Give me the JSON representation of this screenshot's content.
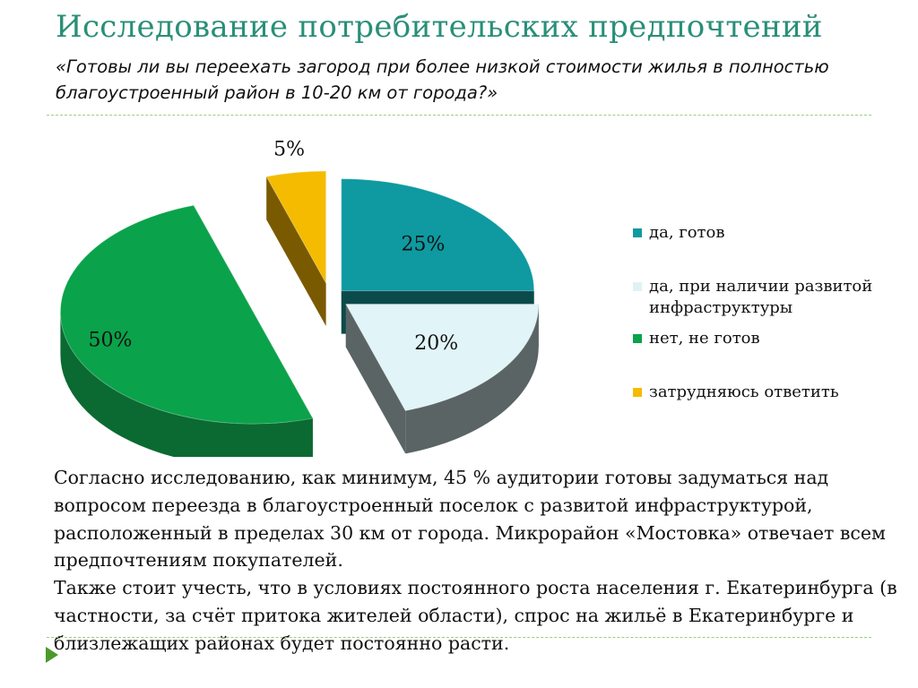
{
  "slide": {
    "title": "Исследование потребительских предпочтений",
    "subtitle": "«Готовы ли вы переехать загород при более низкой стоимости жилья в полностью благоустроенный район в 10-20 км от города?»",
    "body": [
      "Согласно исследованию,  как минимум, 45 % аудитории готовы задуматься над вопросом переезда в благоустроенный поселок с развитой инфраструктурой, расположенный в пределах 30 км от города. Микрорайон «Мостовка» отвечает всем предпочтениям покупателей.",
      "Также стоит учесть, что в условиях постоянного роста населения г. Екатеринбурга (в частности, за счёт притока жителей области), спрос на жильё в Екатеринбурге и близлежащих районах будет постоянно расти."
    ],
    "accent_color": "#2a8f78",
    "nav_icon": "triangle-right-icon"
  },
  "chart_data": {
    "type": "pie",
    "style": "3d-exploded",
    "categories": [
      "да, готов",
      "да, при наличии развитой инфраструктуры",
      "нет, не готов",
      "затрудняюсь ответить"
    ],
    "values": [
      25,
      20,
      50,
      5
    ],
    "labels": [
      "25%",
      "20%",
      "50%",
      "5%"
    ],
    "colors": [
      "#0e9aa0",
      "#e1f4f7",
      "#0aa24a",
      "#f4bb00"
    ],
    "side_colors": [
      "#0b4a4a",
      "#5a6464",
      "#0a6a32",
      "#7a5a00"
    ],
    "legend_position": "right"
  }
}
